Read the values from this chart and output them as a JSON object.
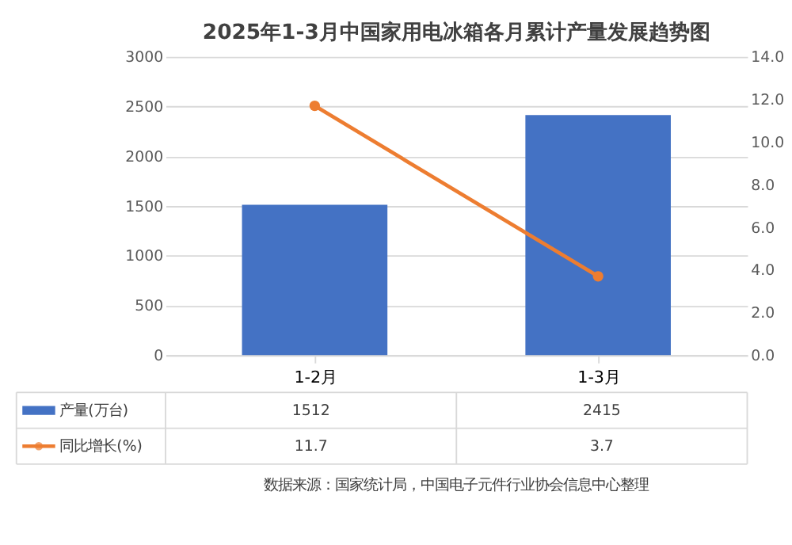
{
  "chart_data": {
    "type": "bar",
    "title": "2025年1-3月中国家用电冰箱各月累计产量发展趋势图",
    "categories": [
      "1-2月",
      "1-3月"
    ],
    "series": [
      {
        "name": "产量(万台)",
        "color": "#4472c4",
        "values": [
          1512,
          2415
        ]
      },
      {
        "name": "同比增长(%)",
        "type": "line",
        "axis": "y2",
        "color": "#ed7d31",
        "values": [
          11.7,
          3.7
        ]
      }
    ],
    "ylim": [
      0,
      3000
    ],
    "yticks": [
      0,
      500,
      1000,
      1500,
      2000,
      2500,
      3000
    ],
    "y2lim": [
      0,
      14
    ],
    "y2ticks": [
      {
        "value": 0,
        "label": "0.0"
      },
      {
        "value": 2,
        "label": "2.0"
      },
      {
        "value": 4,
        "label": "4.0"
      },
      {
        "value": 6,
        "label": "6.0"
      },
      {
        "value": 8,
        "label": "8.0"
      },
      {
        "value": 10,
        "label": "10.0"
      },
      {
        "value": 12,
        "label": "12.0"
      },
      {
        "value": 14,
        "label": "14.0"
      }
    ],
    "grid": "y",
    "legend": "bottom",
    "marker": "circle",
    "data_labels": true,
    "annotations": [
      "数据来源：国家统计局，中国电子元件行业协会信息中心整理"
    ]
  }
}
